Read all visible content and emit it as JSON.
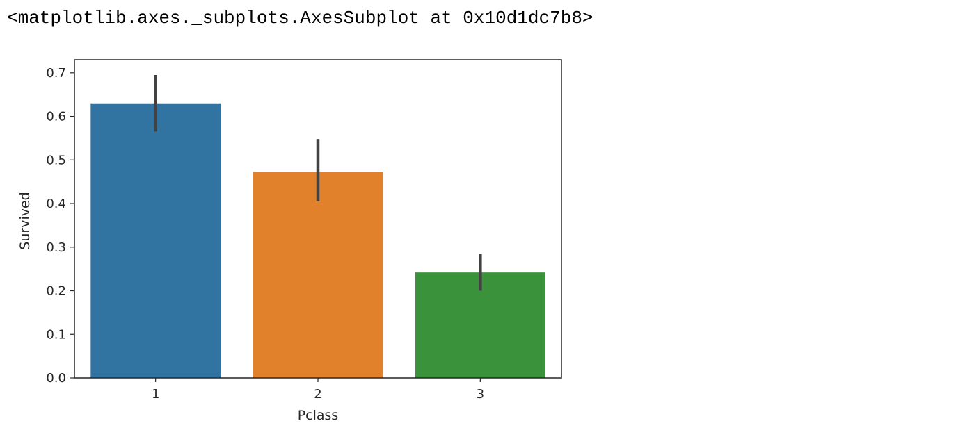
{
  "cell_output": {
    "repr_text": "<matplotlib.axes._subplots.AxesSubplot at 0x10d1dc7b8>"
  },
  "chart_data": {
    "type": "bar",
    "categories": [
      "1",
      "2",
      "3"
    ],
    "values": [
      0.63,
      0.473,
      0.242
    ],
    "error_bars": [
      {
        "low": 0.565,
        "high": 0.695
      },
      {
        "low": 0.405,
        "high": 0.548
      },
      {
        "low": 0.2,
        "high": 0.285
      }
    ],
    "colors": [
      "#3274a1",
      "#e1812c",
      "#3a923a"
    ],
    "error_bar_color": "#424242",
    "xlabel": "Pclass",
    "ylabel": "Survived",
    "ylim": [
      0.0,
      0.73
    ],
    "yticks": [
      0.0,
      0.1,
      0.2,
      0.3,
      0.4,
      0.5,
      0.6,
      0.7
    ],
    "ytick_labels": [
      "0.0",
      "0.1",
      "0.2",
      "0.3",
      "0.4",
      "0.5",
      "0.6",
      "0.7"
    ],
    "grid": false,
    "legend": "none"
  }
}
